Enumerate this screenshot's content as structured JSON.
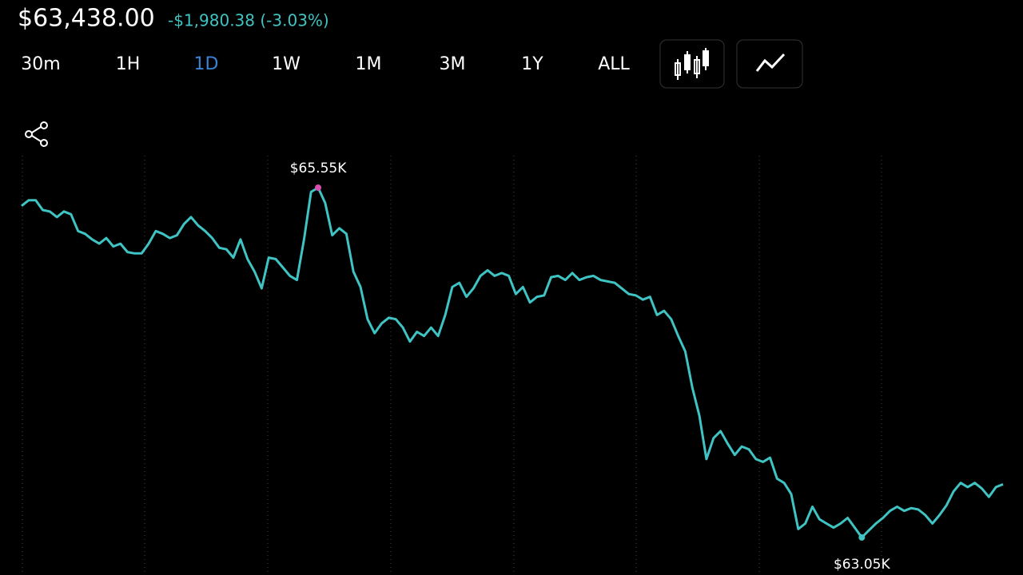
{
  "header": {
    "price": "$63,438.00",
    "change": "-$1,980.38 (-3.03%)"
  },
  "timeframes": [
    "30m",
    "1H",
    "1D",
    "1W",
    "1M",
    "3M",
    "1Y",
    "ALL"
  ],
  "selected_timeframe": 2,
  "chart_data": {
    "type": "line",
    "color": "#3fc3c3",
    "values": [
      65420,
      65460,
      65460,
      65390,
      65380,
      65340,
      65380,
      65360,
      65240,
      65220,
      65180,
      65150,
      65190,
      65130,
      65150,
      65090,
      65080,
      65080,
      65150,
      65240,
      65220,
      65190,
      65210,
      65290,
      65340,
      65280,
      65240,
      65190,
      65120,
      65110,
      65050,
      65180,
      65040,
      64950,
      64830,
      65050,
      65040,
      64980,
      64920,
      64890,
      65180,
      65520,
      65550,
      65440,
      65210,
      65260,
      65220,
      64950,
      64840,
      64610,
      64510,
      64580,
      64620,
      64610,
      64550,
      64450,
      64520,
      64490,
      64550,
      64490,
      64640,
      64840,
      64870,
      64770,
      64830,
      64920,
      64960,
      64920,
      64940,
      64920,
      64790,
      64840,
      64730,
      64770,
      64780,
      64910,
      64920,
      64890,
      64940,
      64890,
      64910,
      64920,
      64890,
      64880,
      64870,
      64830,
      64790,
      64780,
      64750,
      64770,
      64640,
      64670,
      64610,
      64490,
      64380,
      64120,
      63920,
      63610,
      63760,
      63810,
      63720,
      63640,
      63700,
      63680,
      63610,
      63590,
      63620,
      63470,
      63440,
      63360,
      63110,
      63150,
      63270,
      63180,
      63150,
      63120,
      63150,
      63190,
      63120,
      63050,
      63100,
      63150,
      63190,
      63240,
      63270,
      63240,
      63260,
      63250,
      63210,
      63150,
      63210,
      63280,
      63380,
      63440,
      63410,
      63440,
      63400,
      63340,
      63410,
      63430
    ],
    "high": {
      "value": 65550,
      "label": "$65.55K",
      "color": "#d94fb0"
    },
    "low": {
      "value": 63050,
      "label": "$63.05K",
      "color": "#3fc3c3"
    }
  }
}
